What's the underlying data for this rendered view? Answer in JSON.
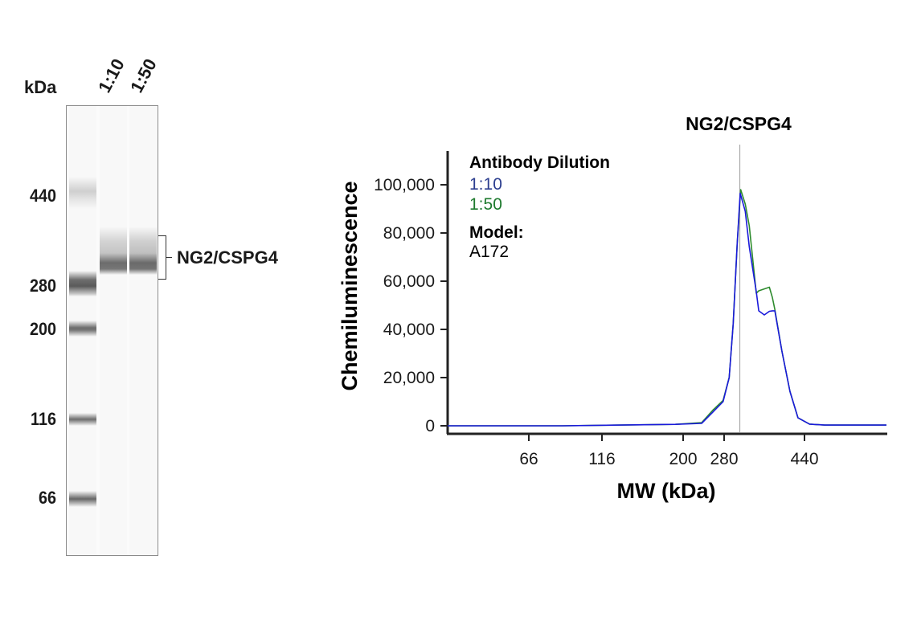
{
  "blot": {
    "unit_label": "kDa",
    "lanes": [
      "1:10",
      "1:50"
    ],
    "markers": [
      "440",
      "280",
      "200",
      "116",
      "66"
    ],
    "target_label": "NG2/CSPG4"
  },
  "chart_data": {
    "type": "line",
    "title": "NG2/CSPG4",
    "xlabel": "MW (kDa)",
    "ylabel": "Chemiluminescence",
    "ylim": [
      0,
      100000
    ],
    "xlim": [
      11,
      603
    ],
    "yticks": [
      0,
      20000,
      40000,
      60000,
      80000,
      100000
    ],
    "ytick_labels": [
      "0",
      "20,000",
      "40,000",
      "60,000",
      "80,000",
      "100,000"
    ],
    "xticks": [
      66,
      116,
      200,
      280,
      440
    ],
    "xtick_labels": [
      "66",
      "116",
      "200",
      "280",
      "440"
    ],
    "reference_line_kda": 312,
    "legend": {
      "title": "Antibody Dilution",
      "model_label": "Model:",
      "model_value": "A172",
      "placement": "top-left"
    },
    "series": [
      {
        "name": "1:10",
        "color": "#1a1adb",
        "label_color": "#2c3e8f",
        "x": [
          11,
          89,
          192,
          236,
          258,
          278,
          290,
          298,
          306,
          312,
          322,
          330,
          344,
          349,
          360,
          370,
          376,
          381,
          395,
          411,
          427,
          450,
          480,
          603
        ],
        "y": [
          0,
          0,
          600,
          1000,
          5700,
          10000,
          20000,
          42300,
          75700,
          96500,
          89000,
          74300,
          55700,
          47700,
          46000,
          47500,
          47700,
          47700,
          31000,
          14300,
          3300,
          700,
          300,
          300
        ]
      },
      {
        "name": "1:50",
        "color": "#2e8b2e",
        "label_color": "#1e7a2e",
        "x": [
          11,
          89,
          192,
          236,
          258,
          278,
          290,
          298,
          306,
          313,
          322,
          330,
          335,
          344,
          349,
          360,
          370,
          376,
          381,
          395,
          411,
          427,
          450,
          480,
          603
        ],
        "y": [
          0,
          0,
          600,
          1300,
          6500,
          10500,
          20000,
          42300,
          75700,
          98000,
          92000,
          83000,
          73000,
          55000,
          56000,
          56800,
          57500,
          53300,
          48300,
          31000,
          14300,
          3300,
          700,
          300,
          300
        ]
      }
    ]
  }
}
